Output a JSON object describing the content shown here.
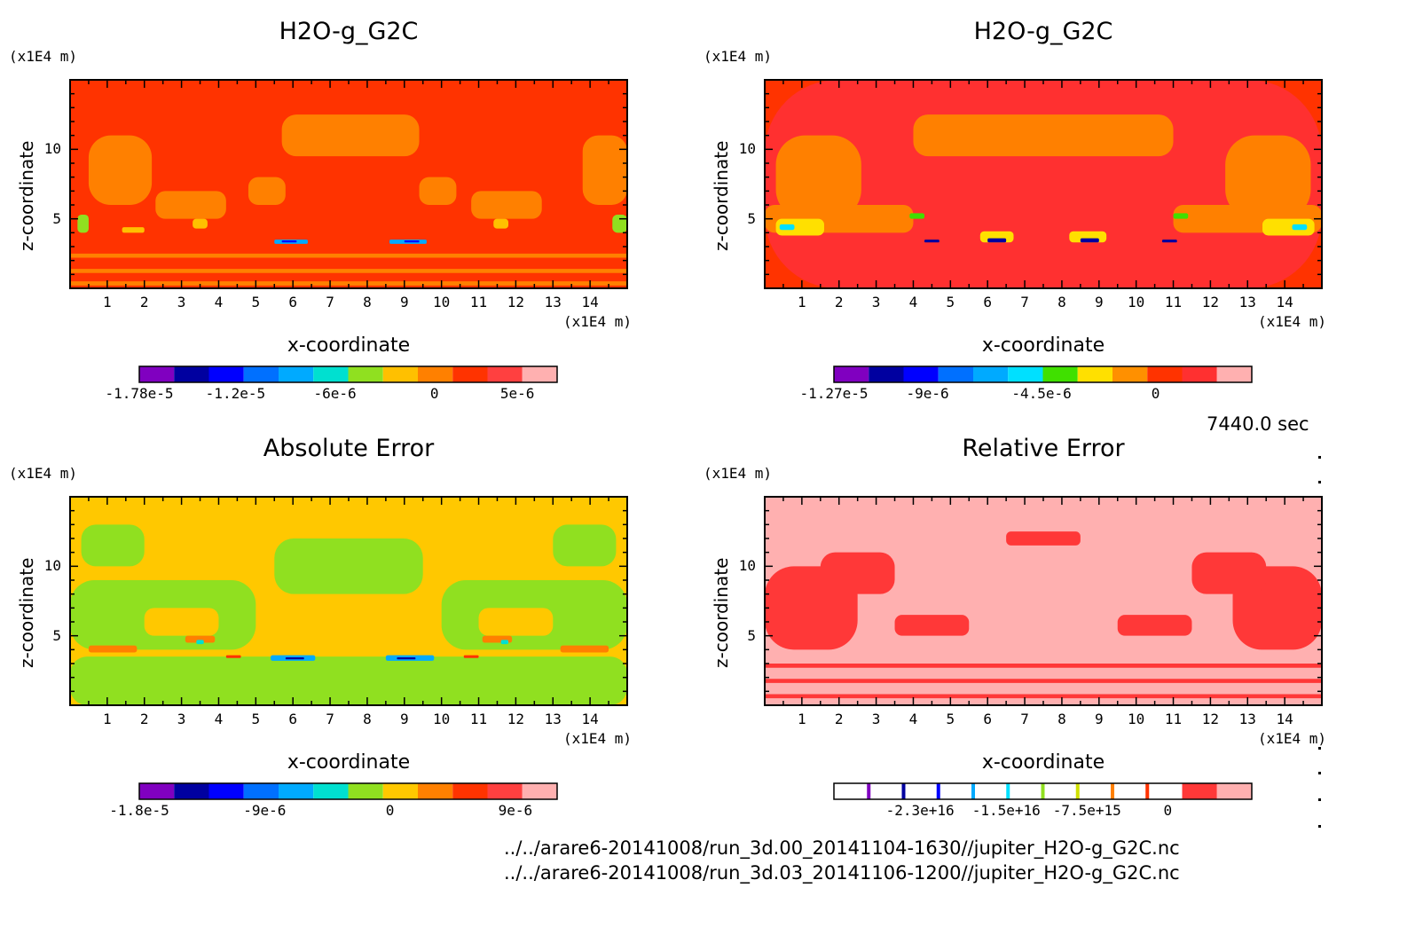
{
  "time_label": "7440.0 sec",
  "footer": {
    "line1": "../../arare6-20141008/run_3d.00_20141104-1630//jupiter_H2O-g_G2C.nc",
    "line2": "../../arare6-20141008/run_3d.03_20141106-1200//jupiter_H2O-g_G2C.nc"
  },
  "chart_data": [
    {
      "type": "heatmap",
      "title": "H2O-g_G2C",
      "xlabel": "x-coordinate",
      "ylabel": "z-coordinate",
      "x_unit": "(x1E4 m)",
      "y_unit": "(x1E4 m)",
      "xlim": [
        0,
        15
      ],
      "ylim": [
        0,
        15
      ],
      "x_ticks": [
        "1",
        "2",
        "3",
        "4",
        "5",
        "6",
        "7",
        "8",
        "9",
        "10",
        "11",
        "12",
        "13",
        "14"
      ],
      "y_ticks": [
        "5",
        "10"
      ],
      "background": "#ff3300",
      "colorbar": {
        "colors": [
          "#8000c0",
          "#0000a0",
          "#0000ff",
          "#0070ff",
          "#00aaff",
          "#00e0d0",
          "#90e020",
          "#ffc000",
          "#ff8000",
          "#ff3300",
          "#ff4040",
          "#ffb0b0"
        ],
        "tick_labels": [
          "-1.78e-5",
          "-1.2e-5",
          "-6e-6",
          "0",
          "5e-6"
        ],
        "tick_values": [
          -1.78e-05,
          -1.2e-05,
          -6e-06,
          0,
          5e-06
        ],
        "range": [
          -1.78e-05,
          7.4e-06
        ]
      },
      "regions": [
        {
          "color": "#ff8000",
          "x": [
            5.7,
            9.4
          ],
          "z": [
            9.5,
            12.5
          ]
        },
        {
          "color": "#ff8000",
          "x": [
            0.5,
            2.2
          ],
          "z": [
            6,
            11
          ]
        },
        {
          "color": "#ff8000",
          "x": [
            13.8,
            15
          ],
          "z": [
            6,
            11
          ]
        },
        {
          "color": "#ff8000",
          "x": [
            4.8,
            5.8
          ],
          "z": [
            6,
            8
          ]
        },
        {
          "color": "#ff8000",
          "x": [
            9.4,
            10.4
          ],
          "z": [
            6,
            8
          ]
        },
        {
          "color": "#ff8000",
          "x": [
            2.3,
            4.2
          ],
          "z": [
            5,
            7
          ]
        },
        {
          "color": "#ff8000",
          "x": [
            10.8,
            12.7
          ],
          "z": [
            5,
            7
          ]
        },
        {
          "color": "#90e020",
          "x": [
            0.2,
            0.5
          ],
          "z": [
            4,
            5.3
          ]
        },
        {
          "color": "#90e020",
          "x": [
            14.6,
            15
          ],
          "z": [
            4,
            5.3
          ]
        },
        {
          "color": "#ffc000",
          "x": [
            3.3,
            3.7
          ],
          "z": [
            4.3,
            5
          ]
        },
        {
          "color": "#ffc000",
          "x": [
            11.4,
            11.8
          ],
          "z": [
            4.3,
            5
          ]
        },
        {
          "color": "#ffc000",
          "x": [
            1.4,
            2
          ],
          "z": [
            4,
            4.4
          ]
        },
        {
          "color": "#00aaff",
          "x": [
            5.5,
            6.4
          ],
          "z": [
            3.2,
            3.5
          ]
        },
        {
          "color": "#0000ff",
          "x": [
            5.7,
            6.1
          ],
          "z": [
            3.3,
            3.45
          ]
        },
        {
          "color": "#00aaff",
          "x": [
            8.6,
            9.6
          ],
          "z": [
            3.2,
            3.5
          ]
        },
        {
          "color": "#0000ff",
          "x": [
            9,
            9.4
          ],
          "z": [
            3.3,
            3.45
          ]
        },
        {
          "color": "#ff8000",
          "x": [
            0,
            15
          ],
          "z": [
            0.2,
            0.5
          ]
        },
        {
          "color": "#ff8000",
          "x": [
            0,
            15
          ],
          "z": [
            1.1,
            1.4
          ]
        },
        {
          "color": "#ff8000",
          "x": [
            0,
            15
          ],
          "z": [
            2.2,
            2.5
          ]
        }
      ]
    },
    {
      "type": "heatmap",
      "title": "H2O-g_G2C",
      "xlabel": "x-coordinate",
      "ylabel": "z-coordinate",
      "x_unit": "(x1E4 m)",
      "y_unit": "(x1E4 m)",
      "xlim": [
        0,
        15
      ],
      "ylim": [
        0,
        15
      ],
      "x_ticks": [
        "1",
        "2",
        "3",
        "4",
        "5",
        "6",
        "7",
        "8",
        "9",
        "10",
        "11",
        "12",
        "13",
        "14"
      ],
      "y_ticks": [
        "5",
        "10"
      ],
      "background": "#ff3300",
      "colorbar": {
        "colors": [
          "#8000c0",
          "#0000a0",
          "#0000ff",
          "#0070ff",
          "#00aaff",
          "#00e0ff",
          "#40e000",
          "#ffe000",
          "#ff9000",
          "#ff3300",
          "#ff3030",
          "#ffb0b0"
        ],
        "tick_labels": [
          "-1.27e-5",
          "-9e-6",
          "-4.5e-6",
          "0"
        ],
        "tick_values": [
          -1.27e-05,
          -9e-06,
          -4.5e-06,
          0
        ],
        "range": [
          -1.27e-05,
          3.8e-06
        ]
      },
      "regions": [
        {
          "color": "#ff3030",
          "x": [
            0,
            15
          ],
          "z": [
            0,
            15
          ]
        },
        {
          "color": "#ff8000",
          "x": [
            0.3,
            2.6
          ],
          "z": [
            5,
            11
          ]
        },
        {
          "color": "#ff8000",
          "x": [
            12.4,
            14.7
          ],
          "z": [
            5,
            11
          ]
        },
        {
          "color": "#ff8000",
          "x": [
            4,
            11
          ],
          "z": [
            9.5,
            12.5
          ]
        },
        {
          "color": "#ff8000",
          "x": [
            0,
            4
          ],
          "z": [
            4,
            6
          ]
        },
        {
          "color": "#ff8000",
          "x": [
            11,
            15
          ],
          "z": [
            4,
            6
          ]
        },
        {
          "color": "#ffe000",
          "x": [
            0.3,
            1.6
          ],
          "z": [
            3.8,
            5
          ]
        },
        {
          "color": "#ffe000",
          "x": [
            13.4,
            14.8
          ],
          "z": [
            3.8,
            5
          ]
        },
        {
          "color": "#ffe000",
          "x": [
            5.8,
            6.7
          ],
          "z": [
            3.3,
            4.1
          ]
        },
        {
          "color": "#ffe000",
          "x": [
            8.2,
            9.2
          ],
          "z": [
            3.3,
            4.1
          ]
        },
        {
          "color": "#00e0ff",
          "x": [
            0.4,
            0.8
          ],
          "z": [
            4.2,
            4.6
          ]
        },
        {
          "color": "#00e0ff",
          "x": [
            14.2,
            14.6
          ],
          "z": [
            4.2,
            4.6
          ]
        },
        {
          "color": "#0000a0",
          "x": [
            6,
            6.5
          ],
          "z": [
            3.3,
            3.6
          ]
        },
        {
          "color": "#0000a0",
          "x": [
            8.5,
            9
          ],
          "z": [
            3.3,
            3.6
          ]
        },
        {
          "color": "#0000a0",
          "x": [
            4.3,
            4.7
          ],
          "z": [
            3.3,
            3.5
          ]
        },
        {
          "color": "#0000a0",
          "x": [
            10.7,
            11.1
          ],
          "z": [
            3.3,
            3.5
          ]
        },
        {
          "color": "#40e000",
          "x": [
            3.9,
            4.3
          ],
          "z": [
            5,
            5.4
          ]
        },
        {
          "color": "#40e000",
          "x": [
            11,
            11.4
          ],
          "z": [
            5,
            5.4
          ]
        }
      ]
    },
    {
      "type": "heatmap",
      "title": "Absolute Error",
      "xlabel": "x-coordinate",
      "ylabel": "z-coordinate",
      "x_unit": "(x1E4 m)",
      "y_unit": "(x1E4 m)",
      "xlim": [
        0,
        15
      ],
      "ylim": [
        0,
        15
      ],
      "x_ticks": [
        "1",
        "2",
        "3",
        "4",
        "5",
        "6",
        "7",
        "8",
        "9",
        "10",
        "11",
        "12",
        "13",
        "14"
      ],
      "y_ticks": [
        "5",
        "10"
      ],
      "background": "#ffc800",
      "colorbar": {
        "colors": [
          "#8000c0",
          "#0000a0",
          "#0000ff",
          "#0070ff",
          "#00aaff",
          "#00e0d0",
          "#90e020",
          "#ffc800",
          "#ff8000",
          "#ff3300",
          "#ff4040",
          "#ffb0b0"
        ],
        "tick_labels": [
          "-1.8e-5",
          "-9e-6",
          "0",
          "9e-6"
        ],
        "tick_values": [
          -1.8e-05,
          -9e-06,
          0,
          9e-06
        ],
        "range": [
          -1.8e-05,
          1.2e-05
        ]
      },
      "regions": [
        {
          "color": "#90e020",
          "x": [
            0,
            15
          ],
          "z": [
            0,
            3.5
          ]
        },
        {
          "color": "#90e020",
          "x": [
            0,
            5
          ],
          "z": [
            4,
            9
          ]
        },
        {
          "color": "#90e020",
          "x": [
            10,
            15
          ],
          "z": [
            4,
            9
          ]
        },
        {
          "color": "#90e020",
          "x": [
            5.5,
            9.5
          ],
          "z": [
            8,
            12
          ]
        },
        {
          "color": "#90e020",
          "x": [
            0.3,
            2
          ],
          "z": [
            10,
            13
          ]
        },
        {
          "color": "#90e020",
          "x": [
            13,
            14.7
          ],
          "z": [
            10,
            13
          ]
        },
        {
          "color": "#ffc800",
          "x": [
            2,
            4
          ],
          "z": [
            5,
            7
          ]
        },
        {
          "color": "#ffc800",
          "x": [
            11,
            13
          ],
          "z": [
            5,
            7
          ]
        },
        {
          "color": "#ff8000",
          "x": [
            0.5,
            1.8
          ],
          "z": [
            3.8,
            4.3
          ]
        },
        {
          "color": "#ff8000",
          "x": [
            13.2,
            14.5
          ],
          "z": [
            3.8,
            4.3
          ]
        },
        {
          "color": "#ff8000",
          "x": [
            3.1,
            3.9
          ],
          "z": [
            4.5,
            5
          ]
        },
        {
          "color": "#ff8000",
          "x": [
            11.1,
            11.9
          ],
          "z": [
            4.5,
            5
          ]
        },
        {
          "color": "#00aaff",
          "x": [
            5.4,
            6.6
          ],
          "z": [
            3.2,
            3.6
          ]
        },
        {
          "color": "#0000a0",
          "x": [
            5.8,
            6.3
          ],
          "z": [
            3.3,
            3.45
          ]
        },
        {
          "color": "#00aaff",
          "x": [
            8.5,
            9.8
          ],
          "z": [
            3.2,
            3.6
          ]
        },
        {
          "color": "#0000a0",
          "x": [
            8.8,
            9.3
          ],
          "z": [
            3.3,
            3.45
          ]
        },
        {
          "color": "#00e0d0",
          "x": [
            3.4,
            3.6
          ],
          "z": [
            4.4,
            4.7
          ]
        },
        {
          "color": "#00e0d0",
          "x": [
            11.6,
            11.8
          ],
          "z": [
            4.4,
            4.7
          ]
        },
        {
          "color": "#ff3300",
          "x": [
            4.2,
            4.6
          ],
          "z": [
            3.4,
            3.6
          ]
        },
        {
          "color": "#ff3300",
          "x": [
            10.6,
            11
          ],
          "z": [
            3.4,
            3.6
          ]
        }
      ]
    },
    {
      "type": "heatmap",
      "title": "Relative Error",
      "xlabel": "x-coordinate",
      "ylabel": "z-coordinate",
      "x_unit": "(x1E4 m)",
      "y_unit": "(x1E4 m)",
      "xlim": [
        0,
        15
      ],
      "ylim": [
        0,
        15
      ],
      "x_ticks": [
        "1",
        "2",
        "3",
        "4",
        "5",
        "6",
        "7",
        "8",
        "9",
        "10",
        "11",
        "12",
        "13",
        "14"
      ],
      "y_ticks": [
        "5",
        "10"
      ],
      "background": "#ffb0b0",
      "colorbar": {
        "colors": [
          "#ffffff",
          "#ffffff",
          "#ffffff",
          "#ffffff",
          "#ffffff",
          "#ffffff",
          "#ffffff",
          "#ffffff",
          "#ffffff",
          "#ffffff",
          "#ff3838",
          "#ffb0b0"
        ],
        "stripe_colors": [
          "#8000c0",
          "#0000a0",
          "#0000ff",
          "#00aaff",
          "#00e0ff",
          "#90e020",
          "#d0e000",
          "#ff8000",
          "#ff3300"
        ],
        "tick_labels": [
          "-2.3e+16",
          "-1.5e+16",
          "-7.5e+15",
          "0"
        ],
        "tick_values": [
          -2.3e+16,
          -1.5e+16,
          -7500000000000000.0,
          0
        ],
        "range": [
          -3.1e+16,
          7800000000000000.0
        ]
      },
      "regions": [
        {
          "color": "#ff3838",
          "x": [
            0,
            2.5
          ],
          "z": [
            4,
            10
          ]
        },
        {
          "color": "#ff3838",
          "x": [
            12.6,
            15
          ],
          "z": [
            4,
            10
          ]
        },
        {
          "color": "#ff3838",
          "x": [
            1.5,
            3.5
          ],
          "z": [
            8,
            11
          ]
        },
        {
          "color": "#ff3838",
          "x": [
            11.5,
            13.5
          ],
          "z": [
            8,
            11
          ]
        },
        {
          "color": "#ff3838",
          "x": [
            6.5,
            8.5
          ],
          "z": [
            11.5,
            12.5
          ]
        },
        {
          "color": "#ff3838",
          "x": [
            3.5,
            5.5
          ],
          "z": [
            5,
            6.5
          ]
        },
        {
          "color": "#ff3838",
          "x": [
            9.5,
            11.5
          ],
          "z": [
            5,
            6.5
          ]
        },
        {
          "color": "#ff3838",
          "x": [
            0,
            15
          ],
          "z": [
            0.5,
            0.8
          ]
        },
        {
          "color": "#ff3838",
          "x": [
            0,
            15
          ],
          "z": [
            1.6,
            1.9
          ]
        },
        {
          "color": "#ff3838",
          "x": [
            0,
            15
          ],
          "z": [
            2.7,
            3
          ]
        }
      ]
    }
  ]
}
